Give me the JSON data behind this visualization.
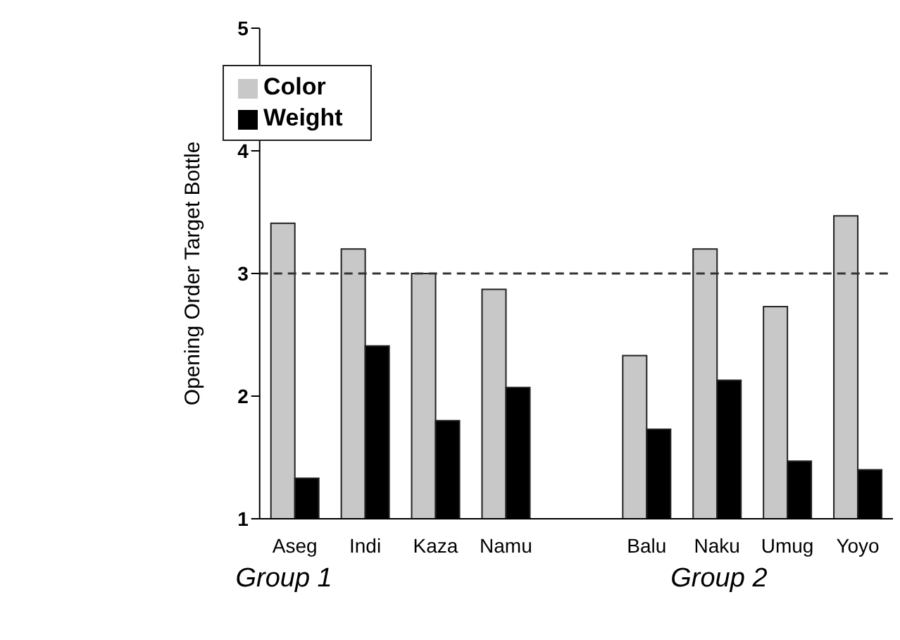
{
  "chart_data": {
    "type": "bar",
    "ylabel": "Opening Order Target Bottle",
    "categories": [
      "Aseg",
      "Indi",
      "Kaza",
      "Namu",
      null,
      "Balu",
      "Naku",
      "Umug",
      "Yoyo"
    ],
    "series": [
      {
        "name": "Color",
        "color": "#c8c8c8",
        "values": [
          3.41,
          3.2,
          3.0,
          2.87,
          null,
          2.33,
          3.2,
          2.73,
          3.47
        ]
      },
      {
        "name": "Weight",
        "color": "#000000",
        "values": [
          1.33,
          2.41,
          1.8,
          2.07,
          null,
          1.73,
          2.13,
          1.47,
          1.4
        ]
      }
    ],
    "ylim": [
      1,
      5
    ],
    "yticks": [
      1,
      2,
      3,
      4,
      5
    ],
    "grid": false,
    "legend": "top left",
    "ref_lines": [
      {
        "axis": "y",
        "value": 3,
        "line_style": "dashed",
        "color": "#333333"
      }
    ],
    "annotations": [
      "Group 1",
      "Group 2"
    ]
  }
}
